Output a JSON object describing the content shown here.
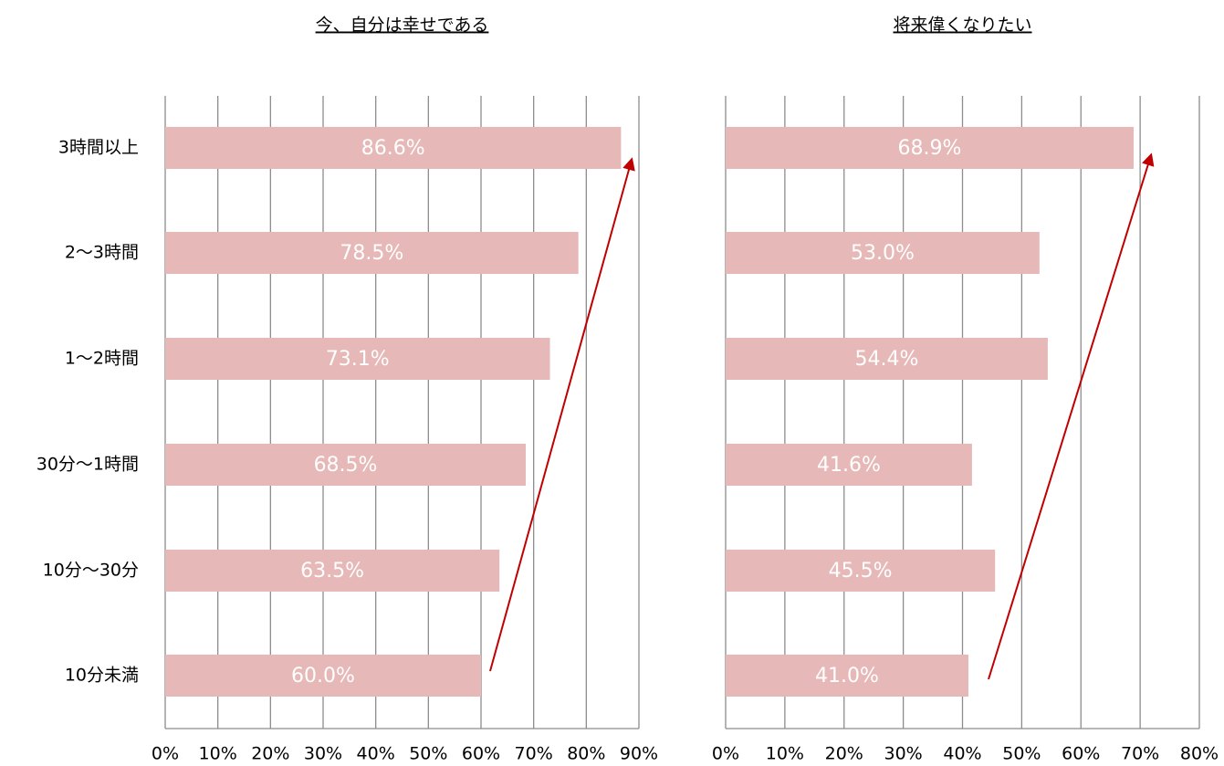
{
  "chart_data": [
    {
      "type": "bar",
      "title": "今、自分は幸せである",
      "categories": [
        "3時間以上",
        "2〜3時間",
        "1〜2時間",
        "30分〜1時間",
        "10分〜30分",
        "10分未満"
      ],
      "values": [
        86.6,
        78.5,
        73.1,
        68.5,
        63.5,
        60.0
      ],
      "value_labels": [
        "86.6%",
        "78.5%",
        "73.1%",
        "68.5%",
        "63.5%",
        "60.0%"
      ],
      "color": "#e6b8b7",
      "xlim": [
        0,
        90
      ],
      "grid": true,
      "xticks": [
        {
          "value": 0,
          "label": "0%"
        },
        {
          "value": 10,
          "label": "10%"
        },
        {
          "value": 20,
          "label": "20%"
        },
        {
          "value": 30,
          "label": "30%"
        },
        {
          "value": 40,
          "label": "40%"
        },
        {
          "value": 50,
          "label": "50%"
        },
        {
          "value": 60,
          "label": "60%"
        },
        {
          "value": 70,
          "label": "70%"
        },
        {
          "value": 80,
          "label": "80%"
        },
        {
          "value": 90,
          "label": "90%"
        }
      ]
    },
    {
      "type": "bar",
      "title": "将来偉くなりたい",
      "values": [
        68.9,
        53.0,
        54.4,
        41.6,
        45.5,
        41.0
      ],
      "value_labels": [
        "68.9%",
        "53.0%",
        "54.4%",
        "41.6%",
        "45.5%",
        "41.0%"
      ],
      "color": "#e6b8b7",
      "xlim": [
        0,
        80
      ],
      "grid": true,
      "xticks": [
        {
          "value": 0,
          "label": "0%"
        },
        {
          "value": 10,
          "label": "10%"
        },
        {
          "value": 20,
          "label": "20%"
        },
        {
          "value": 30,
          "label": "30%"
        },
        {
          "value": 40,
          "label": "40%"
        },
        {
          "value": 50,
          "label": "50%"
        },
        {
          "value": 60,
          "label": "60%"
        },
        {
          "value": 70,
          "label": "70%"
        },
        {
          "value": 80,
          "label": "80%"
        }
      ]
    }
  ]
}
